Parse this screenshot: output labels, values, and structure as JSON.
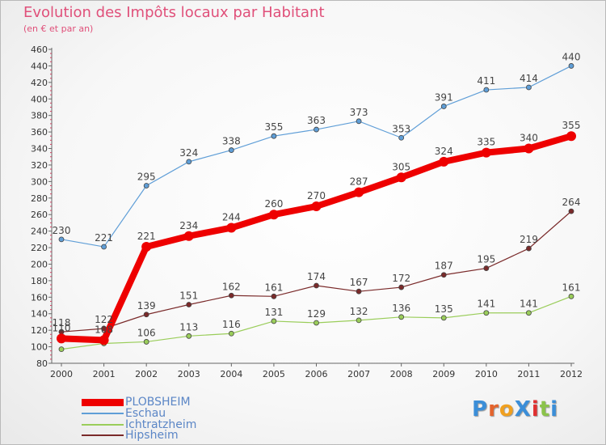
{
  "title": "Evolution des Impôts locaux par Habitant",
  "subtitle": "(en € et par an)",
  "logo_text": "ProXiti",
  "chart_data": {
    "type": "line",
    "title": "Evolution des Impôts locaux par Habitant",
    "subtitle": "(en € et par an)",
    "xlabel": "",
    "ylabel": "",
    "categories": [
      "2000",
      "2001",
      "2002",
      "2003",
      "2004",
      "2005",
      "2006",
      "2007",
      "2008",
      "2009",
      "2010",
      "2011",
      "2012"
    ],
    "ylim": [
      80,
      460
    ],
    "yticks": [
      80,
      100,
      120,
      140,
      160,
      180,
      200,
      220,
      240,
      260,
      280,
      300,
      320,
      340,
      360,
      380,
      400,
      420,
      440,
      460
    ],
    "grid": false,
    "legend_position": "bottom-left",
    "series": [
      {
        "name": "PLOBSHEIM",
        "color": "#ee0000",
        "emphasis": true,
        "values": [
          110,
          108,
          221,
          234,
          244,
          260,
          270,
          287,
          305,
          324,
          335,
          340,
          355
        ],
        "labels": [
          "110",
          "108",
          "221",
          "234",
          "244",
          "260",
          "270",
          "287",
          "305",
          "324",
          "335",
          "340",
          "355"
        ]
      },
      {
        "name": "Eschau",
        "color": "#5f9ed7",
        "emphasis": false,
        "values": [
          230,
          221,
          295,
          324,
          338,
          355,
          363,
          373,
          353,
          391,
          411,
          414,
          440
        ],
        "labels": [
          "230",
          "221",
          "295",
          "324",
          "338",
          "355",
          "363",
          "373",
          "353",
          "391",
          "411",
          "414",
          "440"
        ]
      },
      {
        "name": "Ichtratzheim",
        "color": "#9acd5a",
        "emphasis": false,
        "values": [
          97,
          104,
          106,
          113,
          116,
          131,
          129,
          132,
          136,
          135,
          141,
          141,
          161
        ],
        "labels": [
          "",
          "",
          "106",
          "113",
          "116",
          "131",
          "129",
          "132",
          "136",
          "135",
          "141",
          "141",
          "161"
        ]
      },
      {
        "name": "Hipsheim",
        "color": "#7a2a2a",
        "emphasis": false,
        "values": [
          118,
          122,
          139,
          151,
          162,
          161,
          174,
          167,
          172,
          187,
          195,
          219,
          264
        ],
        "labels": [
          "118",
          "122",
          "139",
          "151",
          "162",
          "161",
          "174",
          "167",
          "172",
          "187",
          "195",
          "219",
          "264"
        ]
      }
    ]
  }
}
